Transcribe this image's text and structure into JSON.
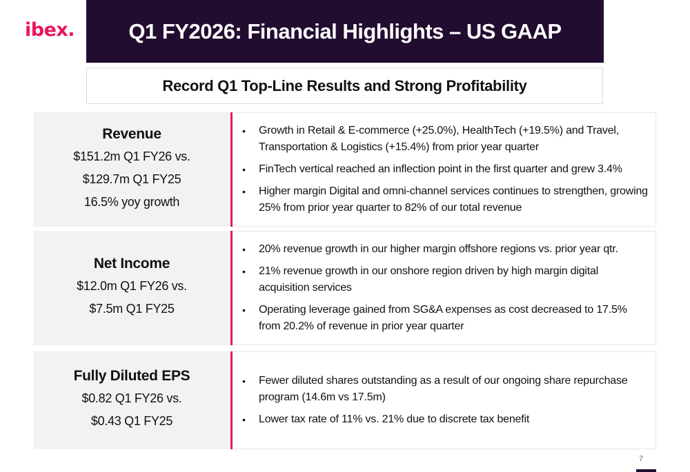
{
  "logo": "ibex.",
  "title": "Q1 FY2026: Financial Highlights – US GAAP",
  "subtitle": "Record Q1 Top-Line Results and Strong Profitability",
  "rows": [
    {
      "metric": "Revenue",
      "lines": [
        "$151.2m Q1 FY26 vs.",
        "$129.7m Q1 FY25",
        "16.5% yoy growth"
      ],
      "bullets": [
        "Growth in Retail & E-commerce (+25.0%), HealthTech (+19.5%) and Travel, Transportation & Logistics (+15.4%) from prior year quarter",
        "FinTech vertical reached an inflection point in the first quarter and grew 3.4%",
        "Higher margin Digital and omni-channel services continues to strengthen, growing 25% from prior year quarter to 82% of our total revenue"
      ]
    },
    {
      "metric": "Net Income",
      "lines": [
        "$12.0m Q1 FY26 vs.",
        "$7.5m Q1 FY25"
      ],
      "bullets": [
        "20% revenue growth in our higher margin offshore regions vs. prior year qtr.",
        "21% revenue growth in our onshore region driven by high margin digital acquisition services",
        "Operating leverage gained from SG&A expenses as cost decreased to 17.5% from 20.2% of revenue in prior year quarter"
      ]
    },
    {
      "metric": "Fully Diluted EPS",
      "lines": [
        "$0.82 Q1 FY26 vs.",
        "$0.43 Q1 FY25"
      ],
      "bullets": [
        "Fewer diluted shares outstanding as a result of our ongoing share repurchase program (14.6m vs 17.5m)",
        "Lower tax rate of 11% vs. 21% due to discrete tax benefit"
      ]
    }
  ],
  "bullet_char": "•",
  "page_number": "7",
  "colors": {
    "accent": "#e8175d",
    "header_bg": "#220d30",
    "panel_bg": "#f2f2f2"
  }
}
